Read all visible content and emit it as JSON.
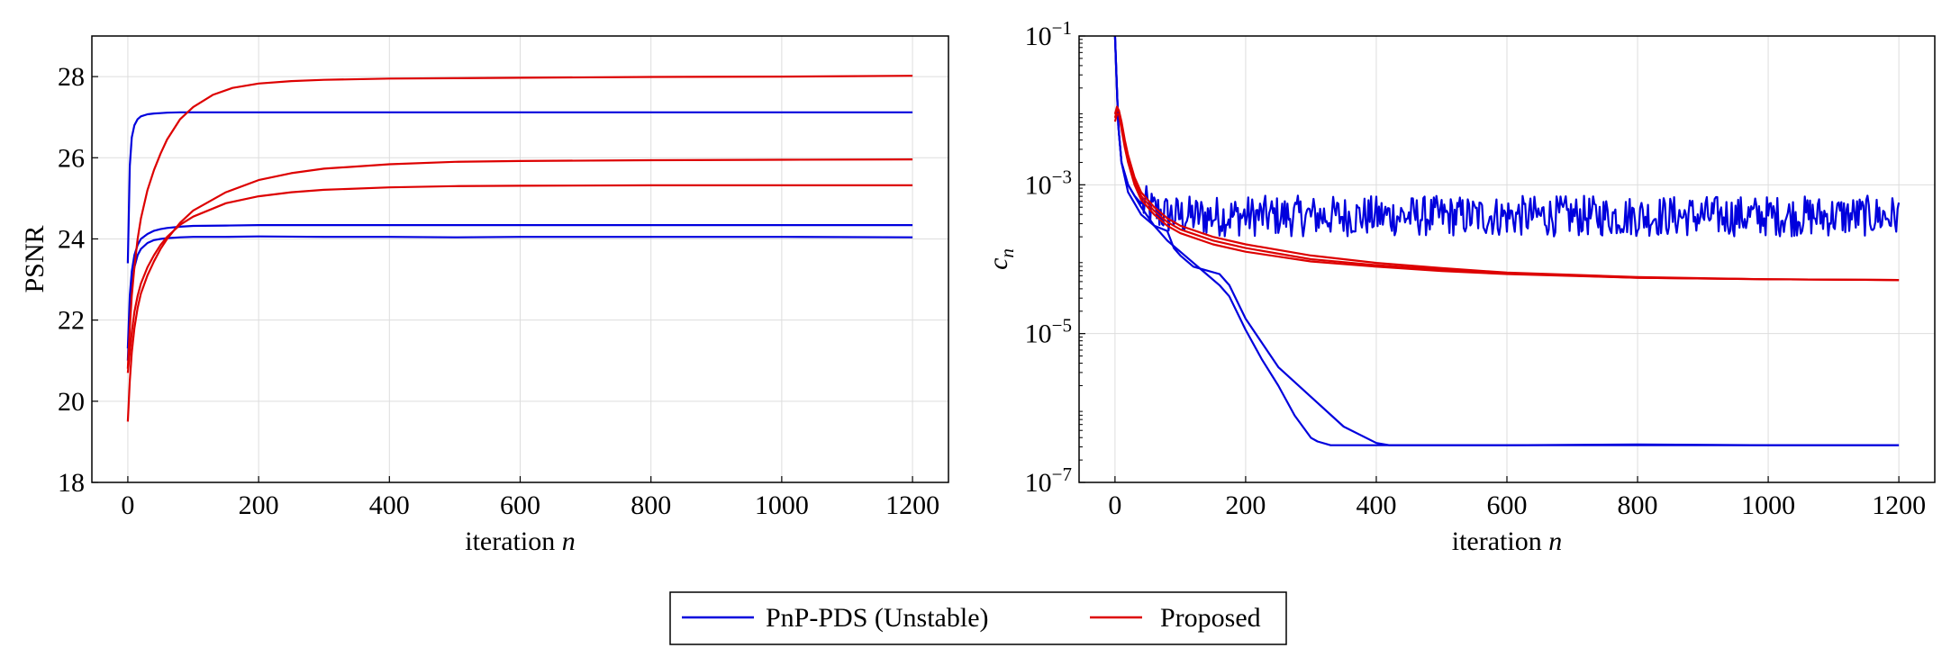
{
  "legend": {
    "entries": [
      {
        "label": "PnP-PDS (Unstable)",
        "color": "#0000dd"
      },
      {
        "label": "Proposed",
        "color": "#dd0000"
      }
    ]
  },
  "colors": {
    "unstable": "#0000dd",
    "proposed": "#dd0000",
    "grid": "#dddddd"
  },
  "chart_data": [
    {
      "type": "line",
      "xlabel_text": "iteration ",
      "xlabel_var": "n",
      "ylabel": "PSNR",
      "xlim": [
        -55,
        1255
      ],
      "ylim": [
        18,
        29
      ],
      "xticks": [
        0,
        200,
        400,
        600,
        800,
        1000,
        1200
      ],
      "yticks": [
        18,
        20,
        22,
        24,
        26,
        28
      ],
      "grid": true,
      "series": [
        {
          "group": "unstable",
          "x": [
            0,
            3,
            6,
            10,
            15,
            20,
            30,
            40,
            50,
            60,
            80,
            100,
            150,
            200,
            300,
            400,
            600,
            800,
            1000,
            1200
          ],
          "y": [
            23.4,
            25.8,
            26.5,
            26.8,
            26.95,
            27.02,
            27.07,
            27.09,
            27.1,
            27.11,
            27.12,
            27.12,
            27.12,
            27.12,
            27.12,
            27.12,
            27.12,
            27.12,
            27.12,
            27.12
          ]
        },
        {
          "group": "unstable",
          "x": [
            0,
            3,
            6,
            10,
            15,
            20,
            30,
            40,
            50,
            60,
            80,
            100,
            150,
            200,
            300,
            400,
            600,
            800,
            1000,
            1200
          ],
          "y": [
            21.3,
            22.6,
            23.2,
            23.6,
            23.85,
            24.0,
            24.12,
            24.2,
            24.24,
            24.27,
            24.3,
            24.32,
            24.33,
            24.34,
            24.34,
            24.34,
            24.34,
            24.34,
            24.34,
            24.34
          ]
        },
        {
          "group": "unstable",
          "x": [
            0,
            3,
            6,
            10,
            15,
            20,
            30,
            40,
            50,
            60,
            80,
            100,
            150,
            200,
            300,
            400,
            500,
            600,
            800,
            1000,
            1200
          ],
          "y": [
            21.0,
            22.2,
            22.9,
            23.3,
            23.6,
            23.75,
            23.9,
            23.97,
            24.0,
            24.02,
            24.04,
            24.05,
            24.05,
            24.06,
            24.05,
            24.05,
            24.04,
            24.05,
            24.05,
            24.05,
            24.04
          ]
        },
        {
          "group": "proposed",
          "x": [
            0,
            3,
            6,
            10,
            15,
            20,
            30,
            40,
            50,
            60,
            80,
            100,
            130,
            160,
            200,
            250,
            300,
            400,
            500,
            600,
            800,
            1000,
            1200
          ],
          "y": [
            20.8,
            21.8,
            22.6,
            23.3,
            24.0,
            24.5,
            25.2,
            25.7,
            26.1,
            26.45,
            26.95,
            27.25,
            27.55,
            27.72,
            27.83,
            27.89,
            27.92,
            27.95,
            27.96,
            27.97,
            27.99,
            28.0,
            28.02
          ]
        },
        {
          "group": "proposed",
          "x": [
            0,
            3,
            6,
            10,
            15,
            20,
            30,
            40,
            50,
            60,
            80,
            100,
            150,
            200,
            250,
            300,
            400,
            500,
            600,
            800,
            1000,
            1200
          ],
          "y": [
            19.5,
            20.5,
            21.2,
            21.8,
            22.3,
            22.65,
            23.1,
            23.45,
            23.75,
            24.0,
            24.4,
            24.7,
            25.15,
            25.45,
            25.62,
            25.73,
            25.84,
            25.9,
            25.92,
            25.94,
            25.95,
            25.96
          ]
        },
        {
          "group": "proposed",
          "x": [
            0,
            3,
            6,
            10,
            15,
            20,
            30,
            40,
            50,
            60,
            80,
            100,
            150,
            200,
            250,
            300,
            400,
            500,
            600,
            800,
            1000,
            1200
          ],
          "y": [
            20.7,
            21.2,
            21.7,
            22.2,
            22.6,
            22.9,
            23.3,
            23.6,
            23.85,
            24.05,
            24.35,
            24.55,
            24.88,
            25.05,
            25.15,
            25.21,
            25.27,
            25.3,
            25.31,
            25.32,
            25.32,
            25.32
          ]
        }
      ]
    },
    {
      "type": "line",
      "xlabel_text": "iteration ",
      "xlabel_var": "n",
      "ylabel_var": "c",
      "ylabel_sub": "n",
      "yscale": "log",
      "xlim": [
        -55,
        1255
      ],
      "ylim_exp": [
        -7,
        -1
      ],
      "xticks": [
        0,
        200,
        400,
        600,
        800,
        1000,
        1200
      ],
      "ytick_exponents": [
        -7,
        -5,
        -3,
        -1
      ],
      "ytick_base": "10",
      "grid": true,
      "series": [
        {
          "group": "unstable",
          "noise": true,
          "x": [
            0,
            5,
            10,
            20,
            30,
            40,
            60,
            80,
            100,
            1200
          ],
          "log10_y": [
            -1.0,
            -2.2,
            -2.7,
            -3.0,
            -3.15,
            -3.25,
            -3.35,
            -3.4,
            -3.42,
            -3.42
          ]
        },
        {
          "group": "unstable",
          "x": [
            0,
            5,
            10,
            20,
            40,
            60,
            80,
            100,
            120,
            140,
            160,
            175,
            200,
            225,
            250,
            275,
            300,
            310,
            330,
            400,
            600,
            800,
            1000,
            1200
          ],
          "log10_y": [
            -1.0,
            -2.2,
            -2.7,
            -3.0,
            -3.3,
            -3.55,
            -3.75,
            -3.9,
            -4.05,
            -4.2,
            -4.35,
            -4.5,
            -4.95,
            -5.35,
            -5.7,
            -6.1,
            -6.4,
            -6.45,
            -6.5,
            -6.5,
            -6.5,
            -6.5,
            -6.5,
            -6.5
          ]
        },
        {
          "group": "unstable",
          "x": [
            0,
            5,
            10,
            20,
            40,
            60,
            80,
            90,
            100,
            120,
            140,
            160,
            175,
            200,
            250,
            300,
            350,
            400,
            420,
            500,
            600,
            800,
            1000,
            1200
          ],
          "log10_y": [
            -1.0,
            -2.2,
            -2.7,
            -3.1,
            -3.4,
            -3.55,
            -3.62,
            -3.85,
            -3.95,
            -4.1,
            -4.15,
            -4.2,
            -4.35,
            -4.8,
            -5.45,
            -5.85,
            -6.25,
            -6.47,
            -6.5,
            -6.5,
            -6.5,
            -6.49,
            -6.5,
            -6.5
          ]
        },
        {
          "group": "proposed",
          "x": [
            0,
            3,
            6,
            10,
            15,
            20,
            30,
            40,
            60,
            80,
            100,
            150,
            200,
            300,
            400,
            500,
            600,
            800,
            1000,
            1200
          ],
          "log10_y": [
            -2.1,
            -2.0,
            -2.0,
            -2.15,
            -2.4,
            -2.6,
            -2.9,
            -3.1,
            -3.3,
            -3.45,
            -3.55,
            -3.7,
            -3.8,
            -3.95,
            -4.05,
            -4.12,
            -4.18,
            -4.24,
            -4.27,
            -4.28
          ]
        },
        {
          "group": "proposed",
          "x": [
            0,
            3,
            6,
            10,
            15,
            20,
            30,
            40,
            60,
            80,
            100,
            150,
            200,
            300,
            400,
            500,
            600,
            800,
            1000,
            1200
          ],
          "log10_y": [
            -2.05,
            -1.95,
            -2.0,
            -2.2,
            -2.45,
            -2.65,
            -2.95,
            -3.15,
            -3.35,
            -3.5,
            -3.6,
            -3.75,
            -3.85,
            -4.0,
            -4.08,
            -4.14,
            -4.19,
            -4.25,
            -4.27,
            -4.28
          ]
        },
        {
          "group": "proposed",
          "x": [
            0,
            3,
            6,
            10,
            15,
            20,
            30,
            40,
            60,
            80,
            100,
            150,
            200,
            300,
            400,
            500,
            600,
            800,
            1000,
            1200
          ],
          "log10_y": [
            -2.15,
            -2.05,
            -2.05,
            -2.25,
            -2.5,
            -2.7,
            -3.0,
            -3.2,
            -3.4,
            -3.55,
            -3.65,
            -3.8,
            -3.9,
            -4.03,
            -4.1,
            -4.16,
            -4.2,
            -4.25,
            -4.27,
            -4.28
          ]
        }
      ]
    }
  ]
}
